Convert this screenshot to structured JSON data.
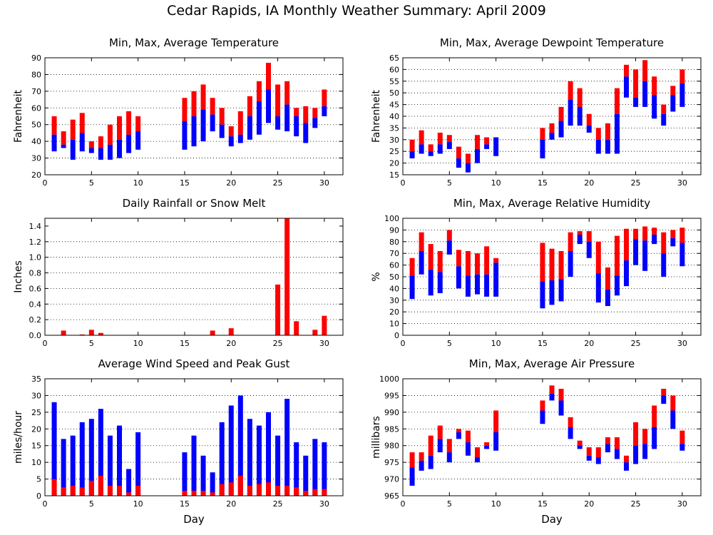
{
  "title": "Cedar Rapids, IA Monthly Weather Summary: April 2009",
  "colors": {
    "max_bar": "#ff0000",
    "min_bar": "#0000ff",
    "grid": "#000000"
  },
  "chart_data": [
    {
      "id": "temp",
      "type": "bar",
      "title": "Min, Max, Average Temperature",
      "xlabel": "",
      "ylabel": "Fahrenheit",
      "xlim": [
        0,
        32
      ],
      "ylim": [
        20,
        90
      ],
      "xticks": [
        0,
        5,
        10,
        15,
        20,
        25,
        30
      ],
      "yticks": [
        20,
        30,
        40,
        50,
        60,
        70,
        80,
        90
      ],
      "grid": "horizontal dotted",
      "legend": "none",
      "days": [
        1,
        2,
        3,
        4,
        5,
        6,
        7,
        8,
        9,
        10,
        15,
        16,
        17,
        18,
        19,
        20,
        21,
        22,
        23,
        24,
        25,
        26,
        27,
        28,
        29,
        30
      ],
      "min": [
        34,
        36,
        29,
        34,
        33,
        29,
        29,
        30,
        33,
        35,
        35,
        37,
        40,
        46,
        42,
        37,
        39,
        41,
        44,
        51,
        47,
        46,
        43,
        39,
        48,
        55
      ],
      "average": [
        44,
        38,
        41,
        45,
        36,
        36,
        38,
        41,
        44,
        46,
        52,
        55,
        59,
        56,
        50,
        43,
        44,
        55,
        64,
        71,
        55,
        62,
        55,
        51,
        54,
        61
      ],
      "max": [
        55,
        46,
        53,
        57,
        40,
        43,
        50,
        55,
        58,
        55,
        66,
        70,
        74,
        66,
        60,
        49,
        58,
        67,
        76,
        87,
        74,
        76,
        60,
        61,
        60,
        71
      ]
    },
    {
      "id": "dewpoint",
      "type": "bar",
      "title": "Min, Max, Average Dewpoint Temperature",
      "xlabel": "",
      "ylabel": "Fahrenheit",
      "xlim": [
        0,
        32
      ],
      "ylim": [
        15,
        65
      ],
      "xticks": [
        0,
        5,
        10,
        15,
        20,
        25,
        30
      ],
      "yticks": [
        15,
        20,
        25,
        30,
        35,
        40,
        45,
        50,
        55,
        60,
        65
      ],
      "grid": "horizontal dotted",
      "legend": "none",
      "days": [
        1,
        2,
        3,
        4,
        5,
        6,
        7,
        8,
        9,
        10,
        15,
        16,
        17,
        18,
        19,
        20,
        21,
        22,
        23,
        24,
        25,
        26,
        27,
        28,
        29,
        30
      ],
      "min": [
        22,
        24,
        23,
        24,
        26,
        18,
        16,
        20,
        26,
        23,
        22,
        30,
        31,
        36,
        36,
        33,
        24,
        24,
        24,
        48,
        44,
        44,
        39,
        36,
        42,
        44
      ],
      "average": [
        25,
        28,
        25,
        28,
        29,
        22,
        20,
        26,
        28,
        31,
        30,
        33,
        38,
        47,
        44,
        36,
        30,
        30,
        41,
        57,
        48,
        55,
        49,
        41,
        49,
        54
      ],
      "max": [
        30,
        34,
        28,
        33,
        32,
        27,
        24,
        32,
        31,
        29,
        35,
        37,
        44,
        55,
        52,
        41,
        35,
        37,
        52,
        62,
        60,
        64,
        57,
        45,
        53,
        60
      ]
    },
    {
      "id": "rain",
      "type": "bar",
      "title": "Daily Rainfall or Snow Melt",
      "xlabel": "",
      "ylabel": "Inches",
      "xlim": [
        0,
        32
      ],
      "ylim": [
        0,
        1.5
      ],
      "xticks": [
        0,
        5,
        10,
        15,
        20,
        25,
        30
      ],
      "yticks": [
        0.0,
        0.2,
        0.4,
        0.6,
        0.8,
        1.0,
        1.2,
        1.4
      ],
      "ytick_labels": [
        "0.0",
        "0.2",
        "0.4",
        "0.6",
        "0.8",
        "1.0",
        "1.2",
        "1.4"
      ],
      "grid": "horizontal dotted",
      "legend": "none",
      "days": [
        2,
        4,
        5,
        6,
        18,
        20,
        25,
        26,
        27,
        29,
        30
      ],
      "values": [
        0.06,
        0.01,
        0.07,
        0.03,
        0.06,
        0.09,
        0.65,
        1.5,
        0.18,
        0.07,
        0.25
      ]
    },
    {
      "id": "humidity",
      "type": "bar",
      "title": "Min, Max, Average Relative Humidity",
      "xlabel": "",
      "ylabel": "%",
      "xlim": [
        0,
        32
      ],
      "ylim": [
        0,
        100
      ],
      "xticks": [
        0,
        5,
        10,
        15,
        20,
        25,
        30
      ],
      "yticks": [
        0,
        10,
        20,
        30,
        40,
        50,
        60,
        70,
        80,
        90,
        100
      ],
      "grid": "horizontal dotted",
      "legend": "none",
      "days": [
        1,
        2,
        3,
        4,
        5,
        6,
        7,
        8,
        9,
        10,
        15,
        16,
        17,
        18,
        19,
        20,
        21,
        22,
        23,
        24,
        25,
        26,
        27,
        28,
        29,
        30
      ],
      "min": [
        31,
        52,
        34,
        36,
        69,
        40,
        33,
        35,
        33,
        33,
        23,
        26,
        29,
        50,
        78,
        66,
        28,
        25,
        34,
        42,
        60,
        55,
        78,
        50,
        76,
        59
      ],
      "average": [
        51,
        72,
        56,
        54,
        81,
        59,
        51,
        52,
        52,
        62,
        46,
        47,
        48,
        72,
        86,
        80,
        53,
        39,
        51,
        64,
        82,
        81,
        86,
        70,
        83,
        79
      ],
      "max": [
        66,
        88,
        78,
        72,
        90,
        73,
        72,
        70,
        76,
        66,
        79,
        74,
        72,
        88,
        89,
        89,
        80,
        58,
        85,
        91,
        91,
        93,
        92,
        88,
        90,
        92
      ]
    },
    {
      "id": "wind",
      "type": "bar",
      "title": "Average Wind Speed and Peak Gust",
      "xlabel": "Day",
      "ylabel": "miles/hour",
      "xlim": [
        0,
        32
      ],
      "ylim": [
        0,
        35
      ],
      "xticks": [
        0,
        5,
        10,
        15,
        20,
        25,
        30
      ],
      "yticks": [
        0,
        5,
        10,
        15,
        20,
        25,
        30,
        35
      ],
      "grid": "horizontal dotted",
      "legend": "none",
      "days": [
        1,
        2,
        3,
        4,
        5,
        6,
        7,
        8,
        9,
        10,
        15,
        16,
        17,
        18,
        19,
        20,
        21,
        22,
        23,
        24,
        25,
        26,
        27,
        28,
        29,
        30
      ],
      "average": [
        5,
        2.5,
        3,
        2.5,
        4.5,
        6,
        3,
        3,
        1,
        3,
        1.5,
        1.5,
        1.5,
        1,
        3.5,
        4,
        6,
        3,
        3.5,
        4,
        3,
        3,
        2.5,
        1.5,
        2,
        2
      ],
      "gust": [
        28,
        17,
        18,
        22,
        23,
        26,
        18,
        21,
        8,
        19,
        13,
        18,
        12,
        7,
        22,
        27,
        30,
        23,
        21,
        25,
        18,
        29,
        16,
        12,
        17,
        16
      ]
    },
    {
      "id": "pressure",
      "type": "bar",
      "title": "Min, Max, Average Air Pressure",
      "xlabel": "Day",
      "ylabel": "millibars",
      "xlim": [
        0,
        32
      ],
      "ylim": [
        965,
        1000
      ],
      "xticks": [
        0,
        5,
        10,
        15,
        20,
        25,
        30
      ],
      "yticks": [
        965,
        970,
        975,
        980,
        985,
        990,
        995,
        1000
      ],
      "grid": "horizontal dotted",
      "legend": "none",
      "days": [
        1,
        2,
        3,
        4,
        5,
        6,
        7,
        8,
        9,
        10,
        15,
        16,
        17,
        18,
        19,
        20,
        21,
        22,
        23,
        24,
        25,
        26,
        27,
        28,
        29,
        30
      ],
      "min": [
        968,
        972.5,
        973,
        978,
        975,
        982,
        977,
        975,
        979,
        978.5,
        986.5,
        993.5,
        989,
        982,
        979,
        975.5,
        974.5,
        978,
        976,
        972.5,
        974.5,
        976,
        979,
        992.5,
        985,
        978.5
      ],
      "average": [
        973.5,
        975.5,
        977,
        982,
        978,
        984,
        981,
        976.5,
        980,
        984,
        990.5,
        995.5,
        993.5,
        985.5,
        980,
        977,
        976.5,
        980.5,
        979,
        975,
        980,
        980.5,
        985.5,
        995,
        990.5,
        980.5
      ],
      "max": [
        978,
        978,
        983,
        986,
        982,
        985,
        984.5,
        979.5,
        981,
        990.5,
        993.5,
        998,
        997,
        988.5,
        981.5,
        979.5,
        979.5,
        982.5,
        982.5,
        977,
        987,
        985,
        992,
        997,
        995,
        984.5
      ]
    }
  ]
}
